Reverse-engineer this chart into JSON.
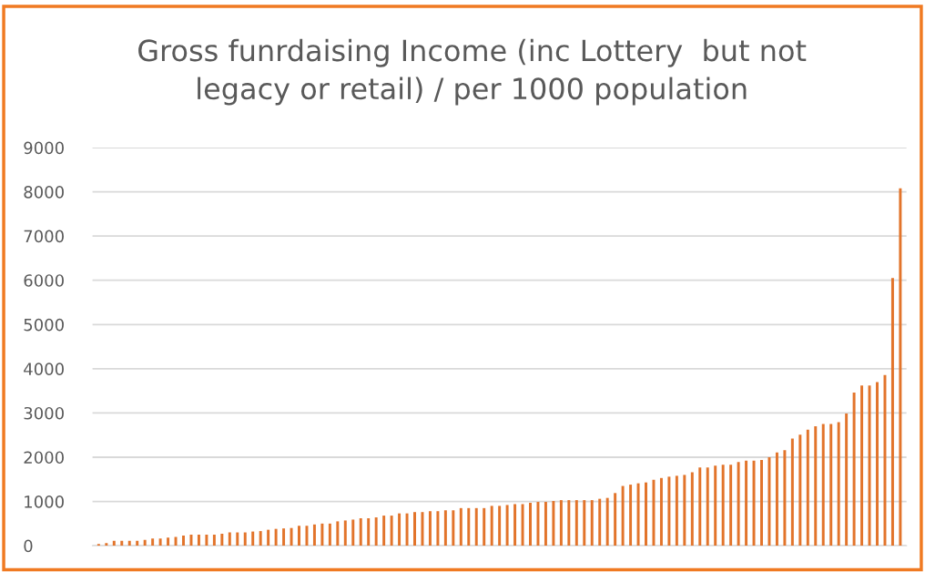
{
  "chart_data": {
    "type": "bar",
    "title": "Gross funrdaising Income (inc Lottery  but not\nlegacy or retail) / per 1000 population",
    "categories": [
      null,
      null,
      null,
      null,
      null,
      null,
      null,
      null,
      null,
      null,
      null,
      null,
      null,
      null,
      null,
      null,
      null,
      null,
      null,
      null,
      null,
      null,
      null,
      null,
      null,
      null,
      null,
      null,
      null,
      null,
      null,
      null,
      null,
      null,
      null,
      null,
      null,
      null,
      null,
      null,
      null,
      null,
      null,
      null,
      null,
      null,
      null,
      null,
      null,
      null,
      null,
      null,
      null,
      null,
      null,
      null,
      null,
      null,
      null,
      null,
      null,
      null,
      null,
      null,
      null,
      null,
      null,
      null,
      null,
      null,
      null,
      null,
      null,
      null,
      null,
      null,
      null,
      null,
      null,
      null,
      null,
      null,
      null,
      null,
      null,
      null,
      null,
      null,
      null,
      null,
      null,
      null,
      null,
      null,
      null,
      null,
      null,
      null,
      null,
      null,
      null,
      null,
      null,
      null,
      null
    ],
    "values": [
      40,
      60,
      110,
      110,
      110,
      110,
      130,
      160,
      160,
      180,
      200,
      230,
      250,
      250,
      250,
      250,
      270,
      300,
      300,
      300,
      320,
      330,
      360,
      380,
      390,
      400,
      450,
      450,
      480,
      500,
      500,
      550,
      570,
      590,
      620,
      620,
      640,
      680,
      680,
      730,
      730,
      760,
      760,
      780,
      780,
      800,
      800,
      850,
      850,
      850,
      850,
      900,
      900,
      920,
      940,
      940,
      970,
      990,
      990,
      1010,
      1030,
      1030,
      1030,
      1030,
      1030,
      1060,
      1080,
      1190,
      1350,
      1380,
      1410,
      1430,
      1490,
      1530,
      1560,
      1580,
      1600,
      1660,
      1770,
      1770,
      1810,
      1830,
      1830,
      1890,
      1920,
      1920,
      1940,
      2000,
      2110,
      2160,
      2420,
      2510,
      2620,
      2700,
      2750,
      2750,
      2790,
      2990,
      3460,
      3620,
      3620,
      3700,
      3860,
      6050,
      8080
    ],
    "color": "#e2742b",
    "ylim": [
      0,
      9000
    ],
    "yticks": [
      0,
      1000,
      2000,
      3000,
      4000,
      5000,
      6000,
      7000,
      8000,
      9000
    ],
    "grid": "y",
    "tick_labels": "y"
  }
}
